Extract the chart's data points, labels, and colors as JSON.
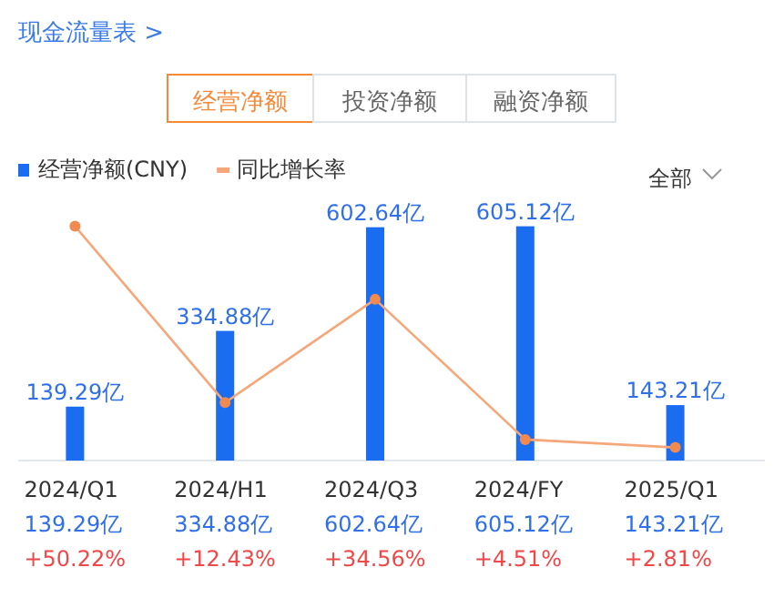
{
  "chart_data": {
    "type": "bar",
    "title": "现金流量表 >",
    "annotations": [
      "经营净额",
      "投资净额",
      "融资净额",
      "全部"
    ],
    "categories": [
      "2024/Q1",
      "2024/H1",
      "2024/Q3",
      "2024/FY",
      "2025/Q1"
    ],
    "series": [
      {
        "name": "经营净额(CNY)",
        "color": "#1a6cf0",
        "values": [
          139.29,
          334.88,
          602.64,
          605.12,
          143.21
        ],
        "value_labels": [
          "139.29亿",
          "334.88亿",
          "602.64亿",
          "605.12亿",
          "143.21亿"
        ]
      },
      {
        "name": "同比增长率",
        "type": "line",
        "axis": "y2",
        "color": "#f5a77a",
        "values": [
          50.22,
          12.43,
          34.56,
          4.51,
          2.81
        ],
        "value_labels": [
          "+50.22%",
          "+12.43%",
          "+34.56%",
          "+4.51%",
          "+2.81%"
        ]
      }
    ],
    "tick_labels": "x",
    "marker": "circle",
    "legend": "top left"
  }
}
